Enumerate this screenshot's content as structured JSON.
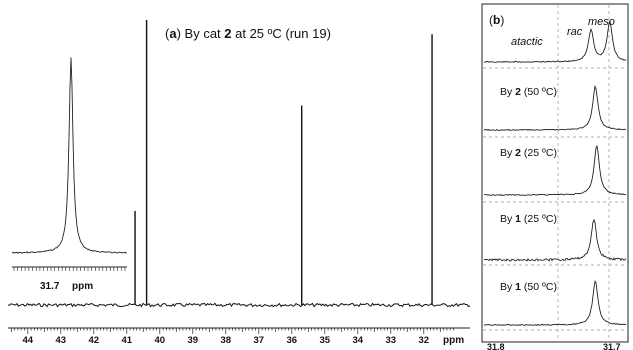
{
  "panel_a": {
    "label": "a",
    "title_pre": " By cat ",
    "title_bold": "2",
    "title_post": " at 25 ºC (run 19)",
    "inset_tick_label": "31.7",
    "inset_unit": "ppm",
    "axis_unit": "ppm"
  },
  "panel_b": {
    "label": "b",
    "region_labels": {
      "atactic": "atactic",
      "rac": "rac",
      "meso": "meso"
    },
    "rows": [
      {
        "pre": "By ",
        "bold": "2",
        "post": " (50 ºC)"
      },
      {
        "pre": "By ",
        "bold": "2",
        "post": " (25 ºC)"
      },
      {
        "pre": "By ",
        "bold": "1",
        "post": " (25 ºC)"
      },
      {
        "pre": "By ",
        "bold": "1",
        "post": " (50 ºC)"
      }
    ],
    "axis_labels": [
      "31.8",
      "31.7"
    ]
  },
  "chart_data": [
    {
      "type": "line",
      "title": "(a) By cat 2 at 25 ºC (run 19)",
      "xlabel": "ppm",
      "xlim": [
        44.6,
        30.6
      ],
      "x_ticks": [
        44,
        43,
        42,
        41,
        40,
        39,
        38,
        37,
        36,
        35,
        34,
        33,
        32
      ],
      "series": [
        {
          "values": [
            {
              "x": 40.75,
              "y": 0.33
            },
            {
              "x": 40.4,
              "y": 1.0
            },
            {
              "x": 35.7,
              "y": 0.7
            },
            {
              "x": 31.75,
              "y": 0.95
            }
          ]
        }
      ],
      "inset": {
        "x": [
          31.7
        ],
        "peak_y": 1.0
      }
    },
    {
      "type": "line",
      "title": "(b)",
      "xlim": [
        31.8,
        31.7
      ],
      "x_ticks": [
        31.8,
        31.7
      ],
      "series": [
        {
          "values": [
            {
              "x": 31.725,
              "y": 0.55
            },
            {
              "x": 31.712,
              "y": 0.7
            }
          ]
        },
        {
          "name": "By 2 (50 ºC)",
          "values": [
            {
              "x": 31.722,
              "y": 0.75
            }
          ]
        },
        {
          "name": "By 2 (25 ºC)",
          "values": [
            {
              "x": 31.721,
              "y": 0.9
            }
          ]
        },
        {
          "name": "By 1 (25 ºC)",
          "values": [
            {
              "x": 31.723,
              "y": 0.75
            }
          ]
        },
        {
          "name": "By 1 (50 ºC)",
          "values": [
            {
              "x": 31.722,
              "y": 0.8
            }
          ]
        }
      ]
    }
  ]
}
